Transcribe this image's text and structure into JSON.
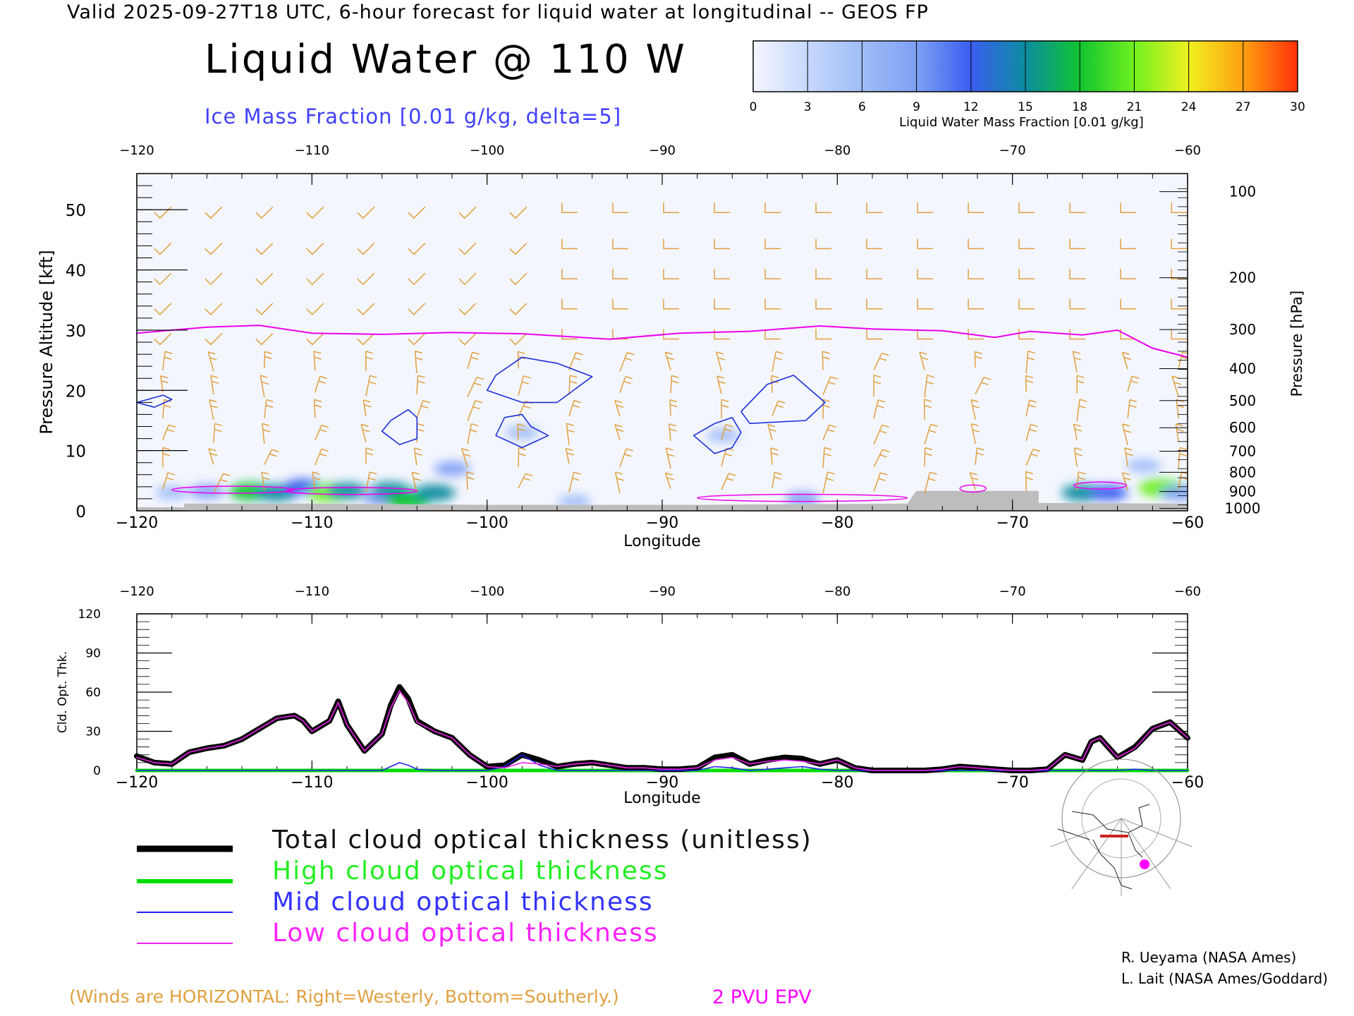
{
  "header": {
    "valid_line": "Valid 2025-09-27T18 UTC, 6-hour forecast for liquid water at longitudinal -- GEOS FP",
    "title": "Liquid Water @ 110 W",
    "subtitle": "Ice Mass Fraction [0.01 g/kg, delta=5]"
  },
  "colorbar": {
    "ticks": [
      "0",
      "3",
      "6",
      "9",
      "12",
      "15",
      "18",
      "21",
      "24",
      "27",
      "30"
    ],
    "label": "Liquid Water Mass Fraction [0.01 g/kg]",
    "colors": [
      "#f4f6fe",
      "#c6d8fc",
      "#a0bdf8",
      "#7ea0f4",
      "#3a5ef0",
      "#0c8ca0",
      "#10c430",
      "#70f020",
      "#f0f020",
      "#ffa010",
      "#ff3008"
    ]
  },
  "legend": {
    "total": "Total cloud optical thickness (unitless)",
    "high": "High cloud optical thickness",
    "mid": "Mid cloud optical thickness",
    "low": "Low cloud optical thickness"
  },
  "notes": {
    "winds": "(Winds are HORIZONTAL: Right=Westerly, Bottom=Southerly.)",
    "epv": "2 PVU EPV"
  },
  "credits": [
    "R. Ueyama (NASA Ames)",
    "L. Lait (NASA Ames/Goddard)"
  ],
  "colors": {
    "total": "#000000",
    "high": "#00dd00",
    "mid": "#2222ee",
    "low": "#ee22ee",
    "ice_contour": "#1a2fd8",
    "epv": "#ee00ee",
    "wind": "#e0a040",
    "terrain": "#bdbdbd"
  },
  "chart_data": [
    {
      "type": "heatmap",
      "xlabel": "Longitude",
      "ylabel": "Pressure Altitude [kft]",
      "y2label": "Pressure [hPa]",
      "xlim": [
        -120,
        -60
      ],
      "ylim": [
        0,
        56
      ],
      "x_ticks": [
        -120,
        -110,
        -100,
        -90,
        -80,
        -70,
        -60
      ],
      "x_tick_labels": [
        "−120",
        "−110",
        "−100",
        "−90",
        "−80",
        "−70",
        "−60"
      ],
      "y_ticks": [
        0,
        10,
        20,
        30,
        40,
        50
      ],
      "pressure_ticks": [
        {
          "p": "100",
          "kft": 53
        },
        {
          "p": "200",
          "kft": 38.7
        },
        {
          "p": "300",
          "kft": 30.1
        },
        {
          "p": "400",
          "kft": 23.6
        },
        {
          "p": "500",
          "kft": 18.3
        },
        {
          "p": "600",
          "kft": 13.8
        },
        {
          "p": "700",
          "kft": 9.9
        },
        {
          "p": "800",
          "kft": 6.4
        },
        {
          "p": "900",
          "kft": 3.2
        },
        {
          "p": "1000",
          "kft": 0.4
        }
      ],
      "epv_2pvu_kft": [
        [
          -120,
          29.5
        ],
        [
          -118,
          30
        ],
        [
          -116,
          30.5
        ],
        [
          -113,
          30.8
        ],
        [
          -110,
          29.5
        ],
        [
          -106,
          29.3
        ],
        [
          -102,
          29.6
        ],
        [
          -98,
          29.4
        ],
        [
          -93,
          28.5
        ],
        [
          -89,
          29.5
        ],
        [
          -85,
          29.8
        ],
        [
          -81,
          30.7
        ],
        [
          -78,
          30.2
        ],
        [
          -74,
          29.9
        ],
        [
          -71,
          28.8
        ],
        [
          -69,
          29.8
        ],
        [
          -66,
          29.2
        ],
        [
          -64,
          30
        ],
        [
          -62,
          27
        ],
        [
          -60,
          25.5
        ]
      ],
      "liquid_blobs": [
        {
          "lon": -118,
          "kft": 3.0,
          "value": 6
        },
        {
          "lon": -116,
          "kft": 3.2,
          "value": 8
        },
        {
          "lon": -113.5,
          "kft": 3.2,
          "value": 18
        },
        {
          "lon": -112,
          "kft": 3.0,
          "value": 16
        },
        {
          "lon": -110.5,
          "kft": 4.0,
          "value": 12
        },
        {
          "lon": -109,
          "kft": 3.0,
          "value": 21
        },
        {
          "lon": -108,
          "kft": 3.3,
          "value": 14
        },
        {
          "lon": -106,
          "kft": 2.0,
          "value": 10
        },
        {
          "lon": -105.5,
          "kft": 3.4,
          "value": 15
        },
        {
          "lon": -104.5,
          "kft": 1.7,
          "value": 18
        },
        {
          "lon": -103,
          "kft": 3.0,
          "value": 16
        },
        {
          "lon": -102,
          "kft": 7.0,
          "value": 9
        },
        {
          "lon": -98,
          "kft": 13.0,
          "value": 6
        },
        {
          "lon": -95,
          "kft": 1.5,
          "value": 6
        },
        {
          "lon": -86.5,
          "kft": 12.5,
          "value": 6
        },
        {
          "lon": -82,
          "kft": 2.0,
          "value": 8
        },
        {
          "lon": -66,
          "kft": 3.0,
          "value": 16
        },
        {
          "lon": -64.5,
          "kft": 3.0,
          "value": 12
        },
        {
          "lon": -62.5,
          "kft": 7.5,
          "value": 7
        },
        {
          "lon": -61.5,
          "kft": 3.8,
          "value": 20
        },
        {
          "lon": -60.5,
          "kft": 3.0,
          "value": 10
        }
      ],
      "ice_contours": [
        [
          [
            -120,
            18
          ],
          [
            -118.5,
            19.2
          ],
          [
            -118,
            18.5
          ],
          [
            -119,
            17.2
          ],
          [
            -120,
            18
          ]
        ],
        [
          [
            -105.5,
            15
          ],
          [
            -104.5,
            16.8
          ],
          [
            -104,
            15.5
          ],
          [
            -104,
            12
          ],
          [
            -105,
            11
          ],
          [
            -106,
            13.2
          ],
          [
            -105.5,
            15
          ]
        ],
        [
          [
            -99.5,
            22.5
          ],
          [
            -98,
            25.5
          ],
          [
            -96,
            24.5
          ],
          [
            -94,
            22.3
          ],
          [
            -96,
            18
          ],
          [
            -98,
            18
          ],
          [
            -100,
            20
          ],
          [
            -99.5,
            22.5
          ]
        ],
        [
          [
            -99,
            15.5
          ],
          [
            -98,
            16
          ],
          [
            -97.5,
            14
          ],
          [
            -96.5,
            12.5
          ],
          [
            -98,
            10.5
          ],
          [
            -99.5,
            12.5
          ],
          [
            -99,
            15.5
          ]
        ],
        [
          [
            -87,
            14.5
          ],
          [
            -86,
            15.5
          ],
          [
            -85.5,
            13
          ],
          [
            -86,
            10.5
          ],
          [
            -87,
            9.5
          ],
          [
            -88.2,
            12.5
          ],
          [
            -87,
            14.5
          ]
        ],
        [
          [
            -85.5,
            16.5
          ],
          [
            -84,
            21
          ],
          [
            -82.5,
            22.5
          ],
          [
            -80.7,
            18
          ],
          [
            -81.8,
            15
          ],
          [
            -85,
            14.5
          ],
          [
            -85.5,
            16.5
          ]
        ]
      ]
    },
    {
      "type": "line",
      "xlabel": "Longitude",
      "ylabel": "Cld. Opt. Thk.",
      "xlim": [
        -120,
        -60
      ],
      "ylim": [
        0,
        120
      ],
      "x_ticks": [
        -120,
        -110,
        -100,
        -90,
        -80,
        -70,
        -60
      ],
      "x_tick_labels": [
        "−120",
        "−110",
        "−100",
        "−90",
        "−80",
        "−70",
        "−60"
      ],
      "y_ticks": [
        0,
        30,
        60,
        90,
        120
      ],
      "x": [
        -120,
        -119,
        -118,
        -117,
        -116,
        -115,
        -114,
        -113,
        -112,
        -111,
        -110.5,
        -110,
        -109,
        -108.5,
        -108,
        -107,
        -106,
        -105.5,
        -105,
        -104.5,
        -104,
        -103,
        -102,
        -101,
        -100,
        -99,
        -98,
        -97,
        -96,
        -95,
        -94,
        -93,
        -92,
        -91,
        -90,
        -89,
        -88,
        -87,
        -86,
        -85,
        -84,
        -83,
        -82,
        -81,
        -80,
        -79,
        -78,
        -77,
        -76,
        -75,
        -74,
        -73,
        -72,
        -71,
        -70,
        -69,
        -68,
        -67,
        -66,
        -65.5,
        -65,
        -64,
        -63,
        -62,
        -61,
        -60
      ],
      "series": [
        {
          "name": "Total cloud optical thickness (unitless)",
          "key": "total",
          "values": [
            11,
            6,
            5,
            14,
            17,
            19,
            24,
            32,
            40,
            42,
            38,
            30,
            38,
            53,
            35,
            15,
            28,
            50,
            64,
            55,
            38,
            30,
            25,
            12,
            3,
            4,
            12,
            8,
            3,
            5,
            6,
            4,
            2,
            2,
            1,
            1,
            2,
            10,
            12,
            5,
            8,
            10,
            9,
            5,
            8,
            2,
            0,
            0,
            0,
            0,
            1,
            3,
            2,
            1,
            0,
            0,
            1,
            12,
            8,
            22,
            25,
            10,
            18,
            32,
            37,
            25
          ]
        },
        {
          "name": "High cloud optical thickness",
          "key": "high",
          "values": [
            0,
            0,
            0,
            0,
            0,
            0,
            0,
            0,
            0,
            0,
            0,
            0,
            0,
            0,
            0,
            0,
            0,
            0,
            0,
            0,
            0,
            0,
            0,
            0,
            0,
            0,
            0,
            0,
            0,
            0,
            0,
            0,
            0,
            0,
            0,
            0,
            0,
            0,
            0,
            0,
            0,
            0,
            0,
            0,
            0,
            0,
            0,
            0,
            0,
            0,
            0,
            0,
            0,
            0,
            0,
            0,
            0,
            0,
            0,
            0,
            0,
            0,
            0,
            0,
            0,
            0
          ]
        },
        {
          "name": "Mid cloud optical thickness",
          "key": "mid",
          "values": [
            0,
            0,
            0,
            0,
            0,
            0,
            0,
            0,
            0,
            0,
            0,
            0,
            0,
            0,
            0,
            0,
            0,
            3,
            6,
            4,
            1,
            0,
            0,
            0,
            0,
            3,
            12,
            4,
            0,
            0,
            0,
            0,
            0,
            0,
            0,
            0,
            0,
            3,
            2,
            0,
            1,
            2,
            3,
            1,
            0,
            0,
            0,
            0,
            0,
            0,
            0,
            0,
            0,
            0,
            0,
            0,
            0,
            0,
            0,
            0,
            0,
            0,
            1,
            0,
            0,
            0
          ]
        },
        {
          "name": "Low cloud optical thickness",
          "key": "low",
          "values": [
            10,
            6,
            5,
            14,
            17,
            19,
            24,
            32,
            40,
            42,
            38,
            30,
            38,
            52,
            35,
            15,
            28,
            48,
            61,
            52,
            37,
            30,
            25,
            12,
            3,
            2,
            6,
            5,
            3,
            5,
            6,
            4,
            2,
            2,
            1,
            1,
            2,
            8,
            10,
            5,
            7,
            8,
            7,
            5,
            8,
            2,
            0,
            0,
            0,
            0,
            1,
            3,
            2,
            1,
            0,
            0,
            1,
            12,
            8,
            22,
            25,
            10,
            17,
            32,
            37,
            25
          ]
        }
      ]
    }
  ]
}
